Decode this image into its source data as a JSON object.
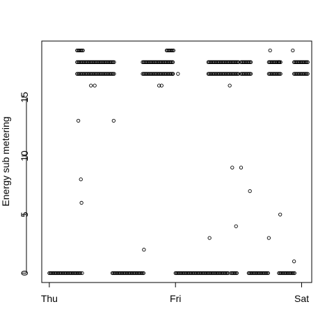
{
  "chart_data": {
    "type": "scatter",
    "title": "",
    "xlabel": "",
    "ylabel": "Energy sub metering",
    "xlim": [
      -0.06,
      2.08
    ],
    "ylim": [
      -0.8,
      19.8
    ],
    "x_ticks": [
      {
        "value": 0,
        "label": "Thu"
      },
      {
        "value": 1,
        "label": "Fri"
      },
      {
        "value": 2,
        "label": "Sat"
      }
    ],
    "y_ticks": [
      0,
      5,
      10,
      15
    ],
    "grid": false,
    "legend": "none",
    "marker": "open-circle",
    "color": "#000000",
    "series": [
      {
        "x_unit": "days since Thu 00:00",
        "bands": [
          {
            "y": 0,
            "ranges": [
              [
                0.0,
                0.25
              ],
              [
                0.5,
                0.75
              ],
              [
                1.0,
                1.42
              ],
              [
                1.44,
                1.49
              ],
              [
                1.58,
                1.74
              ],
              [
                1.82,
                1.95
              ]
            ]
          },
          {
            "y": 17,
            "ranges": [
              [
                0.22,
                0.52
              ],
              [
                0.74,
                0.98
              ],
              [
                1.26,
                1.5
              ],
              [
                1.52,
                1.6
              ],
              [
                1.74,
                1.84
              ],
              [
                1.94,
                2.05
              ]
            ]
          },
          {
            "y": 18,
            "ranges": [
              [
                0.22,
                0.52
              ],
              [
                0.74,
                0.98
              ],
              [
                1.26,
                1.5
              ],
              [
                1.52,
                1.6
              ],
              [
                1.74,
                1.84
              ],
              [
                1.94,
                2.05
              ]
            ]
          },
          {
            "y": 19,
            "ranges": [
              [
                0.22,
                0.27
              ],
              [
                0.93,
                0.99
              ]
            ]
          }
        ],
        "points": [
          [
            0.23,
            13
          ],
          [
            0.25,
            8
          ],
          [
            0.255,
            6
          ],
          [
            0.26,
            0
          ],
          [
            0.33,
            16
          ],
          [
            0.36,
            16
          ],
          [
            0.51,
            13
          ],
          [
            0.75,
            2
          ],
          [
            0.87,
            16
          ],
          [
            0.89,
            16
          ],
          [
            0.98,
            17
          ],
          [
            1.02,
            17
          ],
          [
            1.27,
            3
          ],
          [
            1.43,
            16
          ],
          [
            1.45,
            9
          ],
          [
            1.48,
            4
          ],
          [
            1.52,
            9
          ],
          [
            1.59,
            7
          ],
          [
            1.74,
            3
          ],
          [
            1.75,
            19
          ],
          [
            1.82,
            18
          ],
          [
            1.83,
            5
          ],
          [
            1.93,
            19
          ],
          [
            1.94,
            1
          ]
        ]
      }
    ]
  }
}
